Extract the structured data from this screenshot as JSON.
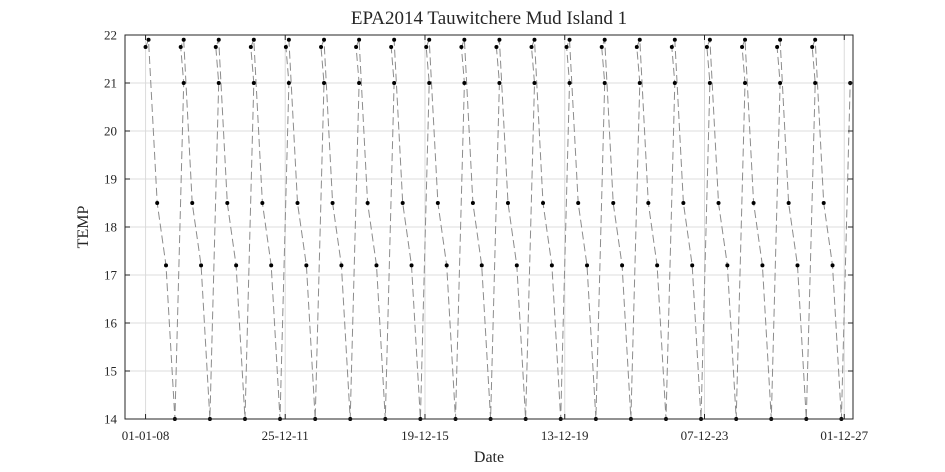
{
  "chart_data": {
    "type": "scatter",
    "title": "EPA2014 Tauwitchere Mud Island 1",
    "xlabel": "Date",
    "ylabel": "TEMP",
    "ylim": [
      14,
      22
    ],
    "yticks": [
      "14",
      "15",
      "16",
      "17",
      "18",
      "19",
      "20",
      "21",
      "22"
    ],
    "xlim": [
      "2007-06-01",
      "2028-03-01"
    ],
    "xticks": [
      {
        "date": "2008-01-01",
        "label": "01-01-08"
      },
      {
        "date": "2011-12-25",
        "label": "25-12-11"
      },
      {
        "date": "2015-12-19",
        "label": "19-12-15"
      },
      {
        "date": "2019-12-13",
        "label": "13-12-19"
      },
      {
        "date": "2023-12-07",
        "label": "07-12-23"
      },
      {
        "date": "2027-12-01",
        "label": "01-12-27"
      }
    ],
    "grid": true,
    "colors": {
      "points": "#000000",
      "line": "#8c8c8c",
      "grid": "#dcdcdc",
      "axis": "#262626"
    },
    "series": [
      {
        "points": [
          [
            "2008-01-01",
            21.75
          ],
          [
            "2008-02-01",
            21.9
          ],
          [
            "2008-05-01",
            18.5
          ],
          [
            "2008-08-01",
            17.2
          ],
          [
            "2008-11-01",
            14.0
          ],
          [
            "2009-02-01",
            21.0
          ],
          [
            "2009-01-01",
            21.75
          ],
          [
            "2009-02-01",
            21.9
          ],
          [
            "2009-05-01",
            18.5
          ],
          [
            "2009-08-01",
            17.2
          ],
          [
            "2009-11-01",
            14.0
          ],
          [
            "2010-02-01",
            21.0
          ],
          [
            "2010-01-01",
            21.75
          ],
          [
            "2010-02-01",
            21.9
          ],
          [
            "2010-05-01",
            18.5
          ],
          [
            "2010-08-01",
            17.2
          ],
          [
            "2010-11-01",
            14.0
          ],
          [
            "2011-02-01",
            21.0
          ],
          [
            "2011-01-01",
            21.75
          ],
          [
            "2011-02-01",
            21.9
          ],
          [
            "2011-05-01",
            18.5
          ],
          [
            "2011-08-01",
            17.2
          ],
          [
            "2011-11-01",
            14.0
          ],
          [
            "2012-02-01",
            21.0
          ],
          [
            "2012-01-01",
            21.75
          ],
          [
            "2012-02-01",
            21.9
          ],
          [
            "2012-05-01",
            18.5
          ],
          [
            "2012-08-01",
            17.2
          ],
          [
            "2012-11-01",
            14.0
          ],
          [
            "2013-02-01",
            21.0
          ],
          [
            "2013-01-01",
            21.75
          ],
          [
            "2013-02-01",
            21.9
          ],
          [
            "2013-05-01",
            18.5
          ],
          [
            "2013-08-01",
            17.2
          ],
          [
            "2013-11-01",
            14.0
          ],
          [
            "2014-02-01",
            21.0
          ],
          [
            "2014-01-01",
            21.75
          ],
          [
            "2014-02-01",
            21.9
          ],
          [
            "2014-05-01",
            18.5
          ],
          [
            "2014-08-01",
            17.2
          ],
          [
            "2014-11-01",
            14.0
          ],
          [
            "2015-02-01",
            21.0
          ],
          [
            "2015-01-01",
            21.75
          ],
          [
            "2015-02-01",
            21.9
          ],
          [
            "2015-05-01",
            18.5
          ],
          [
            "2015-08-01",
            17.2
          ],
          [
            "2015-11-01",
            14.0
          ],
          [
            "2016-02-01",
            21.0
          ],
          [
            "2016-01-01",
            21.75
          ],
          [
            "2016-02-01",
            21.9
          ],
          [
            "2016-05-01",
            18.5
          ],
          [
            "2016-08-01",
            17.2
          ],
          [
            "2016-11-01",
            14.0
          ],
          [
            "2017-02-01",
            21.0
          ],
          [
            "2017-01-01",
            21.75
          ],
          [
            "2017-02-01",
            21.9
          ],
          [
            "2017-05-01",
            18.5
          ],
          [
            "2017-08-01",
            17.2
          ],
          [
            "2017-11-01",
            14.0
          ],
          [
            "2018-02-01",
            21.0
          ],
          [
            "2018-01-01",
            21.75
          ],
          [
            "2018-02-01",
            21.9
          ],
          [
            "2018-05-01",
            18.5
          ],
          [
            "2018-08-01",
            17.2
          ],
          [
            "2018-11-01",
            14.0
          ],
          [
            "2019-02-01",
            21.0
          ],
          [
            "2019-01-01",
            21.75
          ],
          [
            "2019-02-01",
            21.9
          ],
          [
            "2019-05-01",
            18.5
          ],
          [
            "2019-08-01",
            17.2
          ],
          [
            "2019-11-01",
            14.0
          ],
          [
            "2020-02-01",
            21.0
          ],
          [
            "2020-01-01",
            21.75
          ],
          [
            "2020-02-01",
            21.9
          ],
          [
            "2020-05-01",
            18.5
          ],
          [
            "2020-08-01",
            17.2
          ],
          [
            "2020-11-01",
            14.0
          ],
          [
            "2021-02-01",
            21.0
          ],
          [
            "2021-01-01",
            21.75
          ],
          [
            "2021-02-01",
            21.9
          ],
          [
            "2021-05-01",
            18.5
          ],
          [
            "2021-08-01",
            17.2
          ],
          [
            "2021-11-01",
            14.0
          ],
          [
            "2022-02-01",
            21.0
          ],
          [
            "2022-01-01",
            21.75
          ],
          [
            "2022-02-01",
            21.9
          ],
          [
            "2022-05-01",
            18.5
          ],
          [
            "2022-08-01",
            17.2
          ],
          [
            "2022-11-01",
            14.0
          ],
          [
            "2023-02-01",
            21.0
          ],
          [
            "2023-01-01",
            21.75
          ],
          [
            "2023-02-01",
            21.9
          ],
          [
            "2023-05-01",
            18.5
          ],
          [
            "2023-08-01",
            17.2
          ],
          [
            "2023-11-01",
            14.0
          ],
          [
            "2024-02-01",
            21.0
          ],
          [
            "2024-01-01",
            21.75
          ],
          [
            "2024-02-01",
            21.9
          ],
          [
            "2024-05-01",
            18.5
          ],
          [
            "2024-08-01",
            17.2
          ],
          [
            "2024-11-01",
            14.0
          ],
          [
            "2025-02-01",
            21.0
          ],
          [
            "2025-01-01",
            21.75
          ],
          [
            "2025-02-01",
            21.9
          ],
          [
            "2025-05-01",
            18.5
          ],
          [
            "2025-08-01",
            17.2
          ],
          [
            "2025-11-01",
            14.0
          ],
          [
            "2026-02-01",
            21.0
          ],
          [
            "2026-01-01",
            21.75
          ],
          [
            "2026-02-01",
            21.9
          ],
          [
            "2026-05-01",
            18.5
          ],
          [
            "2026-08-01",
            17.2
          ],
          [
            "2026-11-01",
            14.0
          ],
          [
            "2027-02-01",
            21.0
          ],
          [
            "2027-01-01",
            21.75
          ],
          [
            "2027-02-01",
            21.9
          ],
          [
            "2027-05-01",
            18.5
          ],
          [
            "2027-08-01",
            17.2
          ],
          [
            "2027-11-01",
            14.0
          ],
          [
            "2028-02-01",
            21.0
          ]
        ]
      }
    ]
  }
}
